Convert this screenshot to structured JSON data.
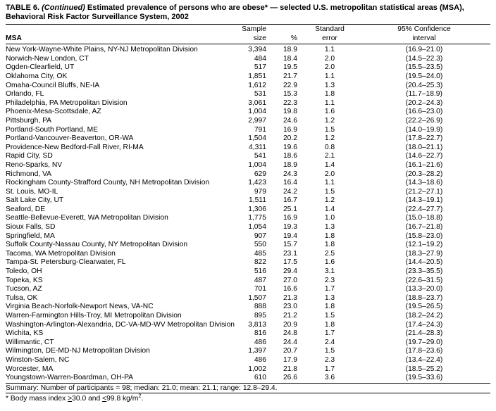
{
  "title": {
    "prefix": "TABLE 6. ",
    "continued": "(Continued) ",
    "rest": "Estimated prevalence of persons who are obese* — selected U.S. metropolitan statistical areas (MSA),",
    "line2": "Behavioral Risk Factor Surveillance System, 2002"
  },
  "table": {
    "headers": {
      "msa": "MSA",
      "sample_line1": "Sample",
      "sample_line2": "size",
      "pct": "%",
      "se_line1": "Standard",
      "se_line2": "error",
      "ci_line1": "95% Confidence",
      "ci_line2": "interval"
    },
    "col_keys": [
      "msa",
      "n",
      "pct",
      "se",
      "ci"
    ],
    "rows": [
      {
        "msa": "New York-Wayne-White Plains, NY-NJ Metropolitan Division",
        "n": "3,394",
        "pct": "18.9",
        "se": "1.1",
        "ci": "(16.9–21.0)"
      },
      {
        "msa": "Norwich-New London, CT",
        "n": "484",
        "pct": "18.4",
        "se": "2.0",
        "ci": "(14.5–22.3)"
      },
      {
        "msa": "Ogden-Clearfield, UT",
        "n": "517",
        "pct": "19.5",
        "se": "2.0",
        "ci": "(15.5–23.5)"
      },
      {
        "msa": "Oklahoma City, OK",
        "n": "1,851",
        "pct": "21.7",
        "se": "1.1",
        "ci": "(19.5–24.0)"
      },
      {
        "msa": "Omaha-Council Bluffs, NE-IA",
        "n": "1,612",
        "pct": "22.9",
        "se": "1.3",
        "ci": "(20.4–25.3)"
      },
      {
        "msa": "Orlando, FL",
        "n": "531",
        "pct": "15.3",
        "se": "1.8",
        "ci": "(11.7–18.9)"
      },
      {
        "msa": "Philadelphia, PA Metropolitan Division",
        "n": "3,061",
        "pct": "22.3",
        "se": "1.1",
        "ci": "(20.2–24.3)"
      },
      {
        "msa": "Phoenix-Mesa-Scottsdale, AZ",
        "n": "1,004",
        "pct": "19.8",
        "se": "1.6",
        "ci": "(16.6–23.0)"
      },
      {
        "msa": "Pittsburgh, PA",
        "n": "2,997",
        "pct": "24.6",
        "se": "1.2",
        "ci": "(22.2–26.9)"
      },
      {
        "msa": "Portland-South Portland, ME",
        "n": "791",
        "pct": "16.9",
        "se": "1.5",
        "ci": "(14.0–19.9)"
      },
      {
        "msa": "Portland-Vancouver-Beaverton, OR-WA",
        "n": "1,504",
        "pct": "20.2",
        "se": "1.2",
        "ci": "(17.8–22.7)"
      },
      {
        "msa": "Providence-New Bedford-Fall River, RI-MA",
        "n": "4,311",
        "pct": "19.6",
        "se": "0.8",
        "ci": "(18.0–21.1)"
      },
      {
        "msa": "Rapid City, SD",
        "n": "541",
        "pct": "18.6",
        "se": "2.1",
        "ci": "(14.6–22.7)"
      },
      {
        "msa": "Reno-Sparks, NV",
        "n": "1,004",
        "pct": "18.9",
        "se": "1.4",
        "ci": "(16.1–21.6)"
      },
      {
        "msa": "Richmond, VA",
        "n": "629",
        "pct": "24.3",
        "se": "2.0",
        "ci": "(20.3–28.2)"
      },
      {
        "msa": "Rockingham County-Strafford County, NH Metropolitan Division",
        "n": "1,423",
        "pct": "16.4",
        "se": "1.1",
        "ci": "(14.3–18.6)"
      },
      {
        "msa": "St. Louis, MO-IL",
        "n": "979",
        "pct": "24.2",
        "se": "1.5",
        "ci": "(21.2–27.1)"
      },
      {
        "msa": "Salt Lake City, UT",
        "n": "1,511",
        "pct": "16.7",
        "se": "1.2",
        "ci": "(14.3–19.1)"
      },
      {
        "msa": "Seaford, DE",
        "n": "1,306",
        "pct": "25.1",
        "se": "1.4",
        "ci": "(22.4–27.7)"
      },
      {
        "msa": "Seattle-Bellevue-Everett, WA Metropolitan Division",
        "n": "1,775",
        "pct": "16.9",
        "se": "1.0",
        "ci": "(15.0–18.8)"
      },
      {
        "msa": "Sioux Falls, SD",
        "n": "1,054",
        "pct": "19.3",
        "se": "1.3",
        "ci": "(16.7–21.8)"
      },
      {
        "msa": "Springfield, MA",
        "n": "907",
        "pct": "19.4",
        "se": "1.8",
        "ci": "(15.8–23.0)"
      },
      {
        "msa": "Suffolk County-Nassau County, NY Metropolitan Division",
        "n": "550",
        "pct": "15.7",
        "se": "1.8",
        "ci": "(12.1–19.2)"
      },
      {
        "msa": "Tacoma, WA Metropolitan Division",
        "n": "485",
        "pct": "23.1",
        "se": "2.5",
        "ci": "(18.3–27.9)"
      },
      {
        "msa": "Tampa-St. Petersburg-Clearwater, FL",
        "n": "822",
        "pct": "17.5",
        "se": "1.6",
        "ci": "(14.4–20.5)"
      },
      {
        "msa": "Toledo, OH",
        "n": "516",
        "pct": "29.4",
        "se": "3.1",
        "ci": "(23.3–35.5)"
      },
      {
        "msa": "Topeka, KS",
        "n": "487",
        "pct": "27.0",
        "se": "2.3",
        "ci": "(22.6–31.5)"
      },
      {
        "msa": "Tucson, AZ",
        "n": "701",
        "pct": "16.6",
        "se": "1.7",
        "ci": "(13.3–20.0)"
      },
      {
        "msa": "Tulsa, OK",
        "n": "1,507",
        "pct": "21.3",
        "se": "1.3",
        "ci": "(18.8–23.7)"
      },
      {
        "msa": "Virginia Beach-Norfolk-Newport News, VA-NC",
        "n": "888",
        "pct": "23.0",
        "se": "1.8",
        "ci": "(19.5–26.5)"
      },
      {
        "msa": "Warren-Farmington Hills-Troy, MI Metropolitan Division",
        "n": "895",
        "pct": "21.2",
        "se": "1.5",
        "ci": "(18.2–24.2)"
      },
      {
        "msa": "Washington-Arlington-Alexandria, DC-VA-MD-WV Metropolitan Division",
        "n": "3,813",
        "pct": "20.9",
        "se": "1.8",
        "ci": "(17.4–24.3)"
      },
      {
        "msa": "Wichita, KS",
        "n": "816",
        "pct": "24.8",
        "se": "1.7",
        "ci": "(21.4–28.3)"
      },
      {
        "msa": "Willimantic, CT",
        "n": "486",
        "pct": "24.4",
        "se": "2.4",
        "ci": "(19.7–29.0)"
      },
      {
        "msa": "Wilmington, DE-MD-NJ Metropolitan Division",
        "n": "1,397",
        "pct": "20.7",
        "se": "1.5",
        "ci": "(17.8–23.6)"
      },
      {
        "msa": "Winston-Salem, NC",
        "n": "486",
        "pct": "17.9",
        "se": "2.3",
        "ci": "(13.4–22.4)"
      },
      {
        "msa": "Worcester, MA",
        "n": "1,002",
        "pct": "21.8",
        "se": "1.7",
        "ci": "(18.5–25.2)"
      },
      {
        "msa": "Youngstown-Warren-Boardman, OH-PA",
        "n": "610",
        "pct": "26.6",
        "se": "3.6",
        "ci": "(19.5–33.6)"
      }
    ],
    "summary": "Summary: Number of participants = 98; median: 21.0; mean: 21.1; range: 12.8–29.4."
  },
  "footnote": {
    "pre": "* Body mass index ",
    "ge": ">",
    "ge_val": "30.0",
    "mid": " and ",
    "le": "<",
    "le_val": "99.8",
    "unit": " kg/m",
    "sup": "2",
    "end": "."
  }
}
